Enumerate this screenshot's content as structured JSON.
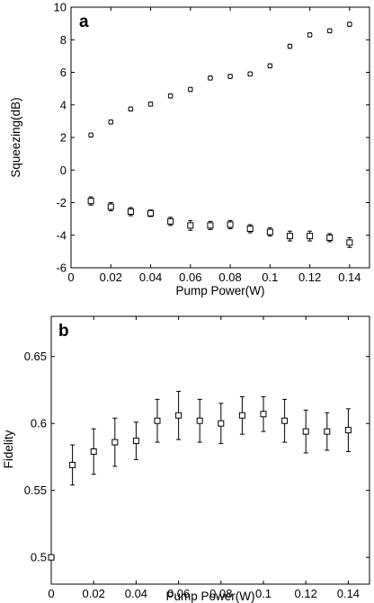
{
  "chart_data": [
    {
      "type": "scatter",
      "panel_label": "a",
      "xlabel": "Pump Power(W)",
      "ylabel": "Squeezing(dB)",
      "xlim": [
        0,
        0.15
      ],
      "ylim": [
        -6,
        10
      ],
      "xticks": [
        0,
        0.02,
        0.04,
        0.06,
        0.08,
        0.1,
        0.12,
        0.14
      ],
      "xtick_labels": [
        "0",
        "0.02",
        "0.04",
        "0.06",
        "0.08",
        "0.1",
        "0.12",
        "0.14"
      ],
      "yticks": [
        -6,
        -4,
        -2,
        0,
        2,
        4,
        6,
        8,
        10
      ],
      "ytick_labels": [
        "-6",
        "-4",
        "-2",
        "0",
        "2",
        "4",
        "6",
        "8",
        "10"
      ],
      "grid": false,
      "series": [
        {
          "marker": "circle",
          "x": [
            0.01,
            0.02,
            0.03,
            0.04,
            0.05,
            0.06,
            0.07,
            0.08,
            0.09,
            0.1,
            0.11,
            0.12,
            0.13,
            0.14
          ],
          "values": [
            2.15,
            2.95,
            3.75,
            4.05,
            4.55,
            4.95,
            5.65,
            5.75,
            5.9,
            6.4,
            7.6,
            8.3,
            8.55,
            8.95
          ],
          "errors": [
            0.12,
            0.12,
            0.12,
            0.12,
            0.12,
            0.12,
            0.12,
            0.12,
            0.12,
            0.12,
            0.12,
            0.12,
            0.12,
            0.12
          ]
        },
        {
          "marker": "square",
          "x": [
            0.01,
            0.02,
            0.03,
            0.04,
            0.05,
            0.06,
            0.07,
            0.08,
            0.09,
            0.1,
            0.11,
            0.12,
            0.13,
            0.14
          ],
          "values": [
            -1.9,
            -2.25,
            -2.55,
            -2.65,
            -3.15,
            -3.4,
            -3.4,
            -3.35,
            -3.6,
            -3.8,
            -4.05,
            -4.05,
            -4.15,
            -4.45
          ],
          "errors": [
            0.25,
            0.25,
            0.25,
            0.2,
            0.25,
            0.3,
            0.25,
            0.25,
            0.25,
            0.25,
            0.3,
            0.3,
            0.25,
            0.3
          ]
        }
      ]
    },
    {
      "type": "scatter",
      "panel_label": "b",
      "xlabel": "Pump Power(W)",
      "ylabel": "Fidelity",
      "xlim": [
        0,
        0.15
      ],
      "ylim": [
        0.48,
        0.68
      ],
      "xticks": [
        0,
        0.02,
        0.04,
        0.06,
        0.08,
        0.1,
        0.12,
        0.14
      ],
      "xtick_labels": [
        "0",
        "0.02",
        "0.04",
        "0.06",
        "0.08",
        "0.1",
        "0.12",
        "0.14"
      ],
      "yticks": [
        0.5,
        0.55,
        0.6,
        0.65
      ],
      "ytick_labels": [
        "0.5",
        "0.55",
        "0.6",
        "0.65"
      ],
      "grid": false,
      "series": [
        {
          "marker": "square",
          "x": [
            0,
            0.01,
            0.02,
            0.03,
            0.04,
            0.05,
            0.06,
            0.07,
            0.08,
            0.09,
            0.1,
            0.11,
            0.12,
            0.13,
            0.14
          ],
          "values": [
            0.5,
            0.569,
            0.579,
            0.586,
            0.587,
            0.602,
            0.606,
            0.602,
            0.6,
            0.606,
            0.607,
            0.602,
            0.594,
            0.594,
            0.595
          ],
          "errors": [
            0.0,
            0.015,
            0.017,
            0.018,
            0.014,
            0.016,
            0.018,
            0.016,
            0.015,
            0.014,
            0.013,
            0.016,
            0.016,
            0.014,
            0.016
          ]
        }
      ]
    }
  ]
}
